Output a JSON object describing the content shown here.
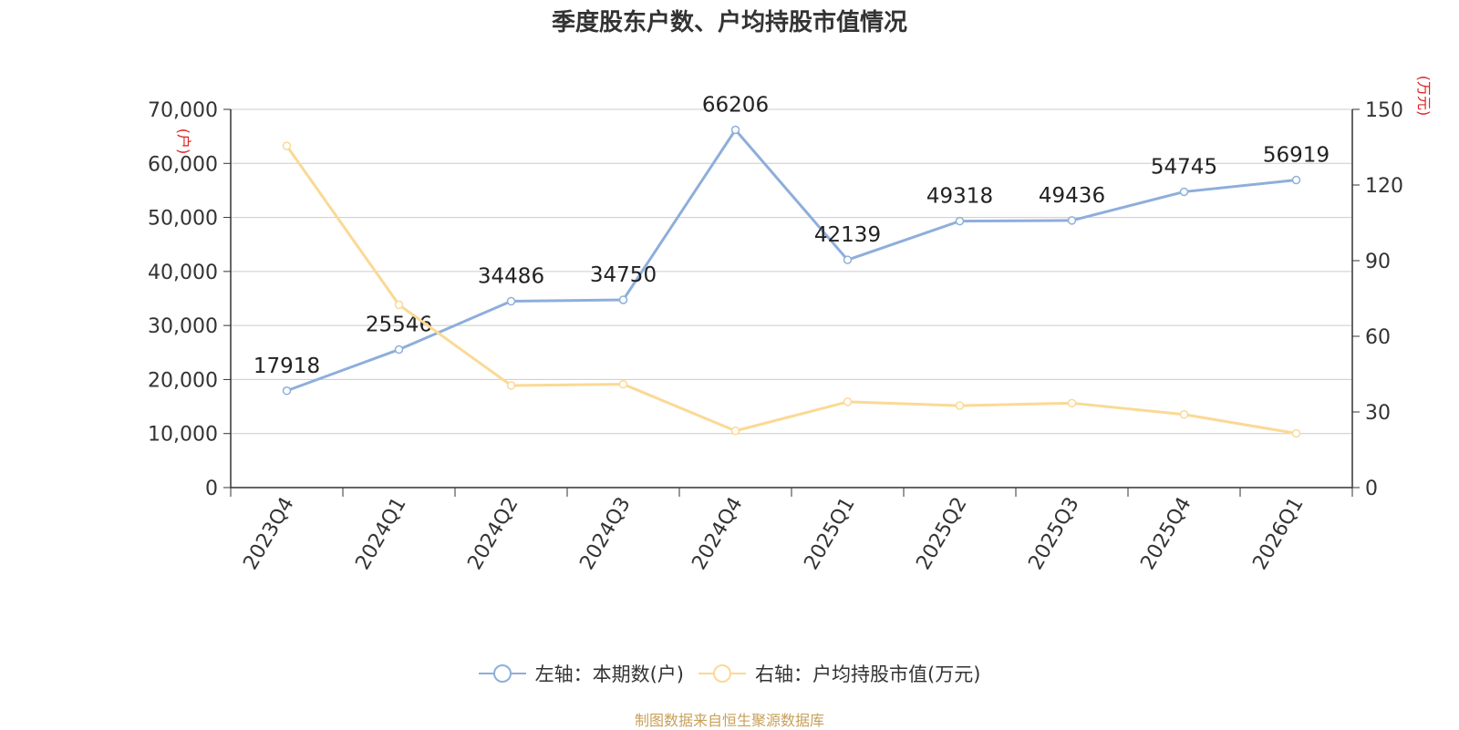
{
  "title": "季度股东户数、户均持股市值情况",
  "source": "制图数据来自恒生聚源数据库",
  "colors": {
    "series1": "#8eaedb",
    "series2": "#fbd995",
    "axis_unit": "#e02020"
  },
  "legend": {
    "left_label": "左轴：本期数(户)",
    "right_label": "右轴：户均持股市值(万元)"
  },
  "chart_data": {
    "type": "line",
    "title": "季度股东户数、户均持股市值情况",
    "categories": [
      "2023Q4",
      "2024Q1",
      "2024Q2",
      "2024Q3",
      "2024Q4",
      "2025Q1",
      "2025Q2",
      "2025Q3",
      "2025Q4",
      "2026Q1"
    ],
    "left_axis": {
      "unit_label": "(户)",
      "ylim": [
        0,
        70000
      ],
      "ticks": [
        0,
        10000,
        20000,
        30000,
        40000,
        50000,
        60000,
        70000
      ],
      "tick_labels": [
        "0",
        "10,000",
        "20,000",
        "30,000",
        "40,000",
        "50,000",
        "60,000",
        "70,000"
      ]
    },
    "right_axis": {
      "unit_label": "(万元)",
      "ylim": [
        0,
        150
      ],
      "ticks": [
        0,
        30,
        60,
        90,
        120,
        150
      ],
      "tick_labels": [
        "0",
        "30",
        "60",
        "90",
        "120",
        "150"
      ]
    },
    "grid": true,
    "legend_position": "bottom",
    "series": [
      {
        "name": "左轴：本期数(户)",
        "axis": "left",
        "values": [
          17918,
          25546,
          34486,
          34750,
          66206,
          42139,
          49318,
          49436,
          54745,
          56919
        ],
        "data_labels": [
          "17918",
          "25546",
          "34486",
          "34750",
          "66206",
          "42139",
          "49318",
          "49436",
          "54745",
          "56919"
        ]
      },
      {
        "name": "右轴：户均持股市值(万元)",
        "axis": "right",
        "values": [
          135.5,
          72.5,
          40.5,
          41.0,
          22.5,
          34.0,
          32.5,
          33.5,
          29.0,
          21.5
        ]
      }
    ]
  }
}
